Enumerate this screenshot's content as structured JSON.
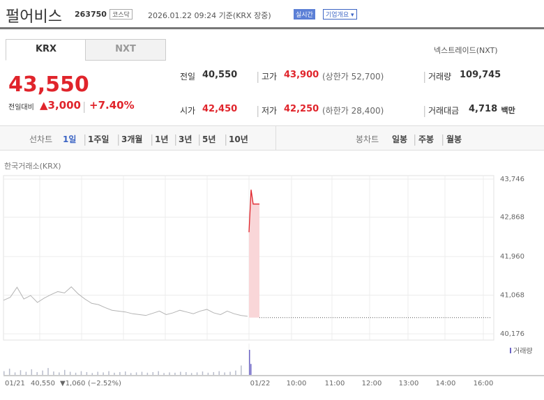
{
  "header": {
    "name": "펄어비스",
    "code": "263750",
    "market": "코스닥",
    "timestamp": "2026.01.22 09:24 기준(KRX 장중)",
    "realtime": "실시간",
    "company_info": "기업개요 ▾"
  },
  "tabs": [
    "KRX",
    "NXT"
  ],
  "nxt_link": "넥스트레이드(NXT)",
  "quote": {
    "price": "43,550",
    "change_label": "전일대비",
    "change": "▲3,000",
    "change_rate": "+7.40%",
    "fields": [
      {
        "label": "전일",
        "value": "40,550"
      },
      {
        "label": "고가",
        "value": "43,900",
        "note": "(상한가 52,700)"
      },
      {
        "label": "거래량",
        "value": "109,745"
      },
      {
        "label": "시가",
        "value": "42,450"
      },
      {
        "label": "저가",
        "value": "42,250",
        "note": "(하한가 28,400)"
      },
      {
        "label": "거래대금",
        "value": "4,718",
        "unit": "백만"
      }
    ]
  },
  "periods": {
    "line_label": "선차트",
    "line": [
      "1일",
      "1주일",
      "3개월",
      "1년",
      "3년",
      "5년",
      "10년"
    ],
    "candle_label": "봉차트",
    "candle": [
      "일봉",
      "주봉",
      "월봉"
    ]
  },
  "chart_data": {
    "type": "line",
    "source": "한국거래소(KRX)",
    "ylim": [
      40032,
      43826
    ],
    "yticks": [
      {
        "value": 40176,
        "label": "40,176"
      },
      {
        "value": 41068,
        "label": "41,068"
      },
      {
        "value": 41960,
        "label": "41,960"
      },
      {
        "value": 42868,
        "label": "42,868"
      },
      {
        "value": 43746,
        "label": "43,746"
      }
    ],
    "x_labels": [
      "01/22",
      "10:00",
      "11:00",
      "12:00",
      "13:00",
      "14:00",
      "16:00"
    ],
    "previous_day": {
      "color": "#b4b4b4",
      "values": [
        40950,
        41020,
        41250,
        40980,
        41060,
        40900,
        41000,
        41080,
        41150,
        41120,
        41260,
        41100,
        40980,
        40880,
        40850,
        40780,
        40720,
        40700,
        40680,
        40640,
        40620,
        40600,
        40650,
        40700,
        40620,
        40660,
        40720,
        40680,
        40640,
        40700,
        40740,
        40660,
        40620,
        40700,
        40640,
        40600,
        40580
      ]
    },
    "today": {
      "color": "#e0242b",
      "values": [
        42520,
        43500,
        43170,
        43170,
        43170,
        43170
      ]
    },
    "previous_close": 40550,
    "volume_label": "거래량",
    "volume": {
      "color": "#b8bccb",
      "today_color": "#6b63c4",
      "ylim": [
        0,
        100
      ],
      "previous": [
        12,
        20,
        8,
        15,
        10,
        18,
        9,
        14,
        22,
        11,
        8,
        16,
        10,
        7,
        12,
        9,
        6,
        10,
        8,
        12,
        7,
        9,
        11,
        6,
        8,
        10,
        7,
        9,
        12,
        6,
        8,
        7,
        10,
        9,
        6,
        8,
        11,
        7,
        9,
        12,
        8,
        10,
        14,
        30
      ],
      "today": [
        80,
        35
      ]
    },
    "footer": {
      "date": "01/21",
      "close": "40,550",
      "change": "▼1,060",
      "rate": "(−2.52%)"
    }
  }
}
